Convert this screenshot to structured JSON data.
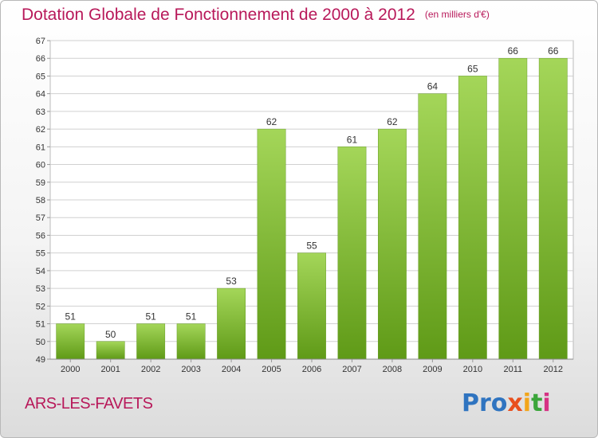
{
  "header": {
    "title": "Dotation Globale de Fonctionnement de 2000 à 2012",
    "unit": "(en milliers d'€)"
  },
  "footer": {
    "commune": "ARS-LES-FAVETS",
    "logo_parts": [
      "Pro",
      "x",
      "i",
      "t",
      "i"
    ]
  },
  "colors": {
    "title": "#b8195a",
    "bar_top": "#a4d659",
    "bar_bottom": "#5f9a17",
    "grid": "#d0d0d0"
  },
  "chart_data": {
    "type": "bar",
    "title": "Dotation Globale de Fonctionnement de 2000 à 2012",
    "subtitle": "(en milliers d'€)",
    "categories": [
      "2000",
      "2001",
      "2002",
      "2003",
      "2004",
      "2005",
      "2006",
      "2007",
      "2008",
      "2009",
      "2010",
      "2011",
      "2012"
    ],
    "values": [
      51,
      50,
      51,
      51,
      53,
      62,
      55,
      61,
      62,
      64,
      65,
      66,
      66
    ],
    "ylim": [
      49,
      67
    ],
    "yticks": [
      49,
      50,
      51,
      52,
      53,
      54,
      55,
      56,
      57,
      58,
      59,
      60,
      61,
      62,
      63,
      64,
      65,
      66,
      67
    ],
    "grid": true,
    "xlabel": "",
    "ylabel": ""
  }
}
